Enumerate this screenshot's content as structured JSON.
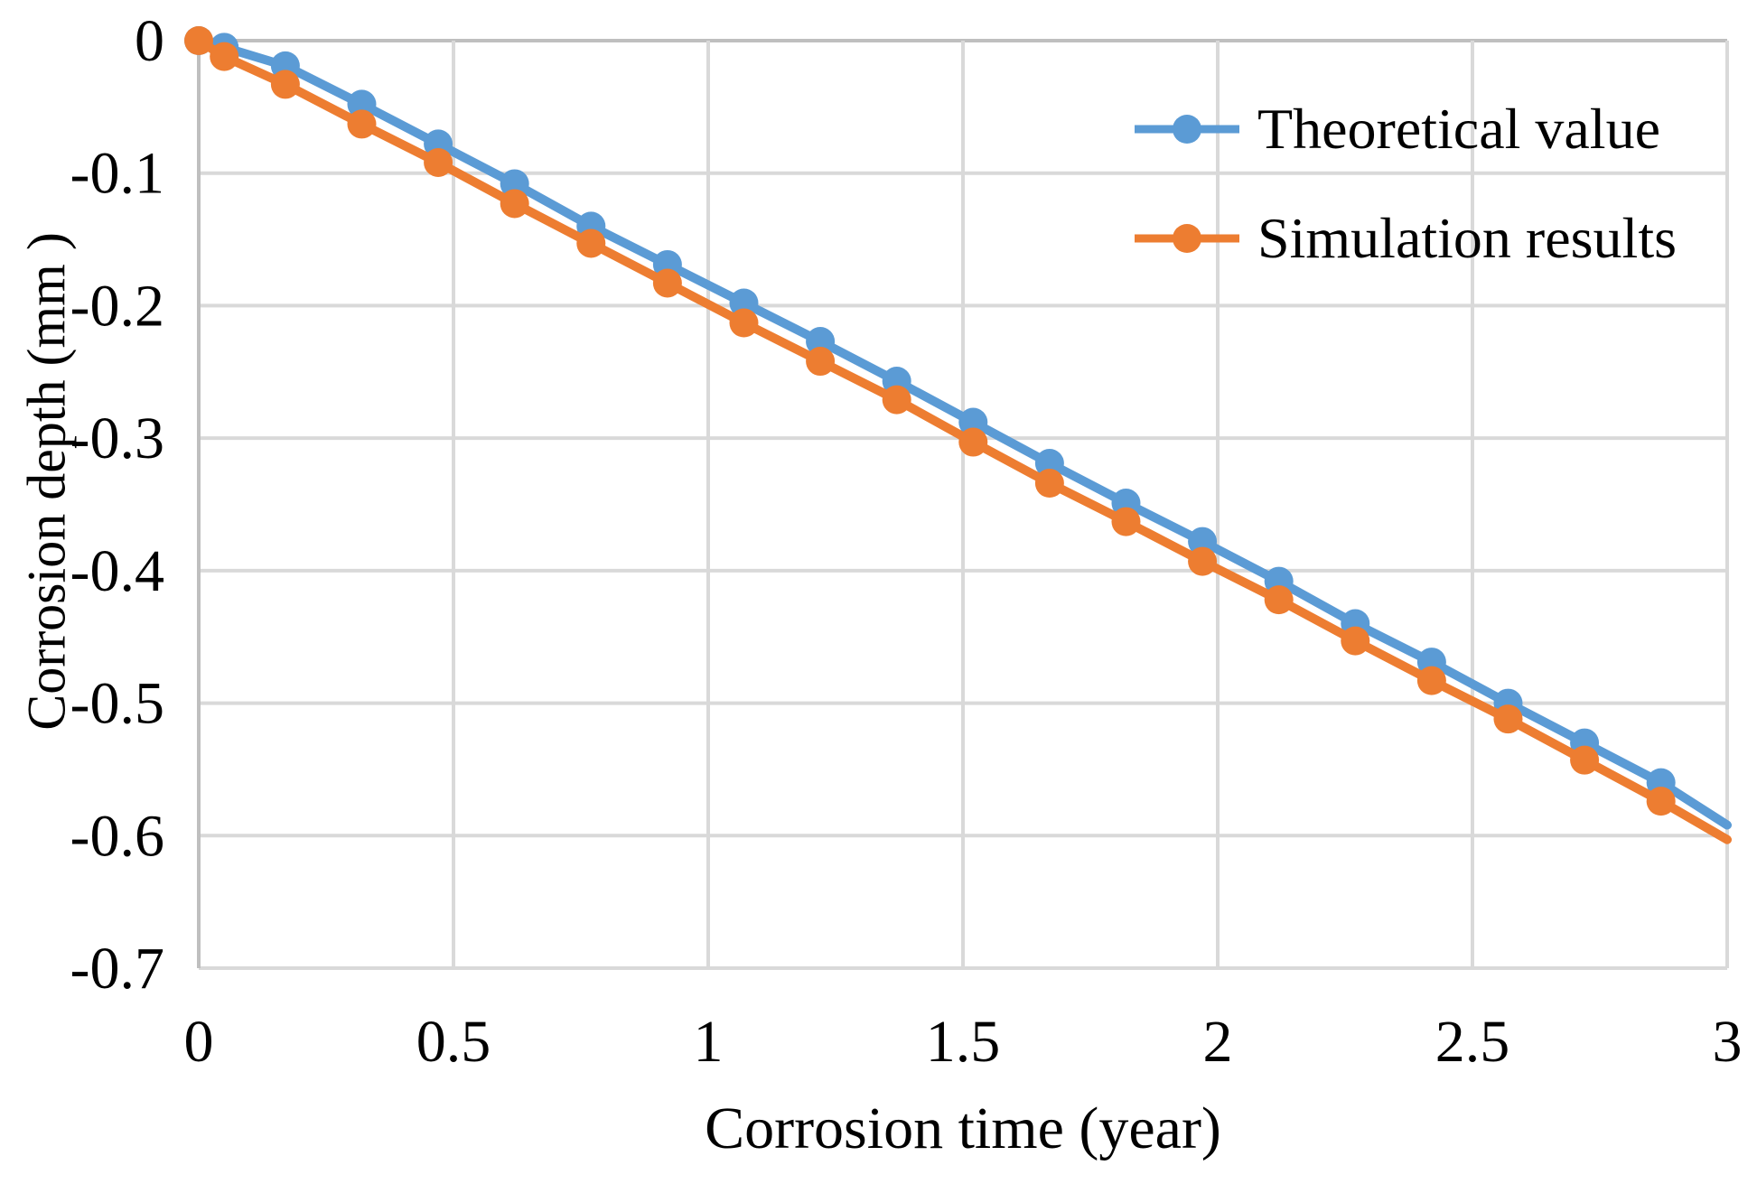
{
  "figure": {
    "background": "#ffffff",
    "text_color": "#000000",
    "gridline_color": "#D9D9D9",
    "axis_line_color": "#BFBFBF"
  },
  "chart_data": {
    "type": "line",
    "title": "",
    "xlabel": "Corrosion time (year)",
    "ylabel": "Corrosion depth (mm )",
    "xlim": [
      0,
      3
    ],
    "ylim": [
      -0.7,
      0
    ],
    "grid": true,
    "legend_position": "top-right-inside",
    "x_ticks": [
      "0",
      "0.5",
      "1",
      "1.5",
      "2",
      "2.5",
      "3"
    ],
    "x_tick_values": [
      0,
      0.5,
      1,
      1.5,
      2,
      2.5,
      3
    ],
    "y_ticks": [
      "0",
      "-0.1",
      "-0.2",
      "-0.3",
      "-0.4",
      "-0.5",
      "-0.6",
      "-0.7"
    ],
    "y_tick_values": [
      0,
      -0.1,
      -0.2,
      -0.3,
      -0.4,
      -0.5,
      -0.6,
      -0.7
    ],
    "x": [
      0,
      0.05,
      0.17,
      0.32,
      0.47,
      0.62,
      0.77,
      0.92,
      1.07,
      1.22,
      1.37,
      1.52,
      1.67,
      1.82,
      1.97,
      2.12,
      2.27,
      2.42,
      2.57,
      2.72,
      2.87
    ],
    "series": [
      {
        "name": "Theoretical value",
        "color": "#5B9BD5",
        "marker": "circle",
        "values": [
          0,
          -0.005,
          -0.019,
          -0.048,
          -0.078,
          -0.108,
          -0.14,
          -0.169,
          -0.198,
          -0.227,
          -0.257,
          -0.288,
          -0.319,
          -0.349,
          -0.378,
          -0.408,
          -0.44,
          -0.469,
          -0.5,
          -0.53,
          -0.56
        ],
        "edge_x": 3.0,
        "edge_value": -0.592
      },
      {
        "name": "Simulation results",
        "color": "#ED7D31",
        "marker": "circle",
        "values": [
          0,
          -0.012,
          -0.033,
          -0.063,
          -0.092,
          -0.123,
          -0.153,
          -0.183,
          -0.213,
          -0.242,
          -0.271,
          -0.303,
          -0.334,
          -0.363,
          -0.393,
          -0.422,
          -0.453,
          -0.483,
          -0.512,
          -0.543,
          -0.574
        ],
        "edge_x": 3.0,
        "edge_value": -0.603
      }
    ]
  }
}
